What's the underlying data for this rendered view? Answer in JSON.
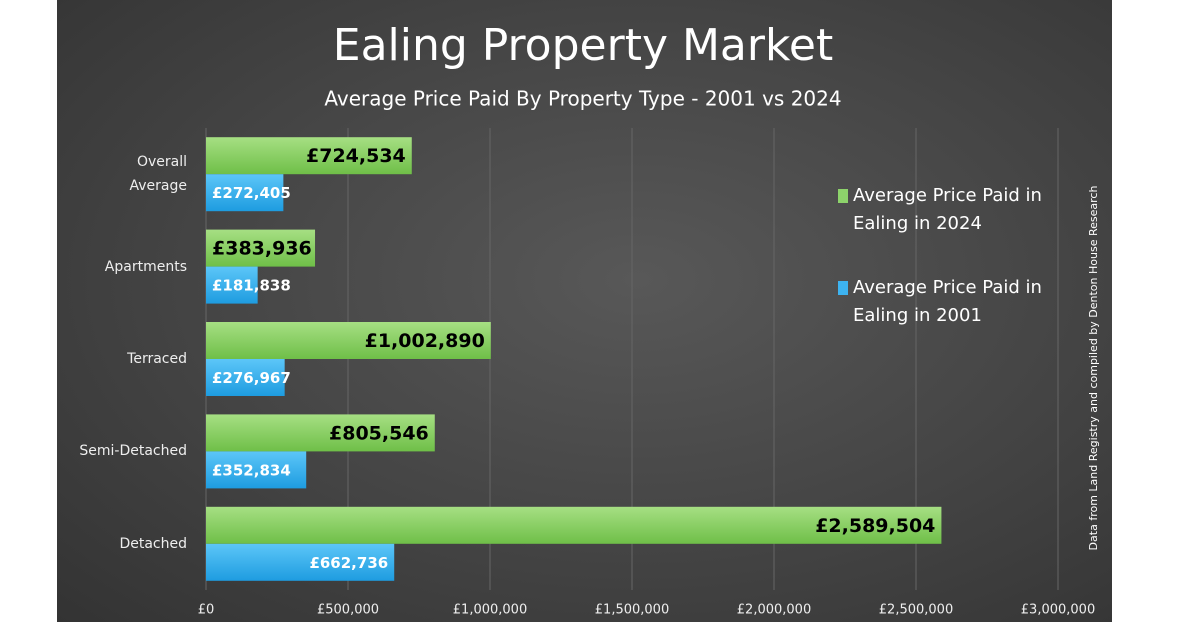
{
  "chart_data": {
    "type": "barh",
    "title": "Ealing Property Market",
    "subtitle": "Average Price Paid By Property Type - 2001 vs 2024",
    "source_note": "Data from Land Registry and compiled by Denton House Research",
    "categories": [
      "Overall\nAverage",
      "Apartments",
      "Terraced",
      "Semi-Detached",
      "Detached"
    ],
    "series": [
      {
        "name": "Average Price Paid in Ealing in 2024",
        "color": "#8dd36b",
        "values": [
          724534,
          383936,
          1002890,
          805546,
          2589504
        ],
        "value_labels": [
          "£724,534",
          "£383,936",
          "£1,002,890",
          "£805,546",
          "£2,589,504"
        ]
      },
      {
        "name": "Average Price Paid in Ealing in 2001",
        "color": "#3db3f0",
        "values": [
          272405,
          181838,
          276967,
          352834,
          662736
        ],
        "value_labels": [
          "£272,405",
          "£181,838",
          "£276,967",
          "£352,834",
          "£662,736"
        ]
      }
    ],
    "xlim": [
      0,
      3000000
    ],
    "xticks": [
      {
        "value": 0,
        "label": "£0"
      },
      {
        "value": 500000,
        "label": "£500,000"
      },
      {
        "value": 1000000,
        "label": "£1,000,000"
      },
      {
        "value": 1500000,
        "label": "£1,500,000"
      },
      {
        "value": 2000000,
        "label": "£2,000,000"
      },
      {
        "value": 2500000,
        "label": "£2,500,000"
      },
      {
        "value": 3000000,
        "label": "£3,000,000"
      }
    ],
    "grid": true,
    "legend": "upper right"
  }
}
